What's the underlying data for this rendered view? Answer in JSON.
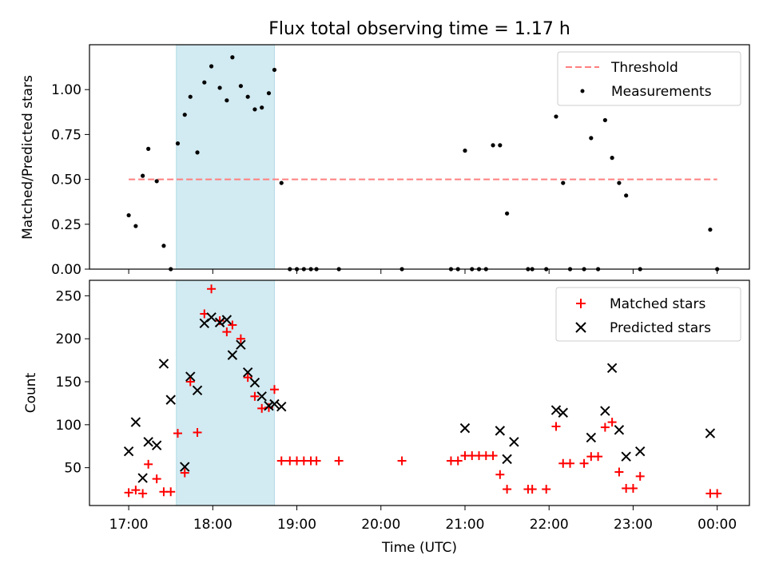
{
  "title": "Flux total observing time = 1.17 h",
  "colors": {
    "threshold": "#ff7f7f",
    "measurement": "#000000",
    "matched": "#ff0000",
    "predicted": "#000000",
    "span": "#add8e6"
  },
  "chart_data": [
    {
      "type": "scatter",
      "ylabel": "Matched/Predicted stars",
      "ylim": [
        0,
        1.25
      ],
      "yticks": [
        0.0,
        0.25,
        0.5,
        0.75,
        1.0
      ],
      "ytick_labels": [
        "0.00",
        "0.25",
        "0.50",
        "0.75",
        "1.00"
      ],
      "xlim": [
        "16:32",
        "00:23"
      ],
      "xticks": [
        "17:00",
        "18:00",
        "19:00",
        "20:00",
        "21:00",
        "22:00",
        "23:00",
        "00:00"
      ],
      "shaded_span": [
        "17:34",
        "18:44"
      ],
      "legend_position": "upper right",
      "legend": {
        "threshold": "Threshold",
        "measurements": "Measurements"
      },
      "series": [
        {
          "name": "Threshold",
          "kind": "dashed-line",
          "x": [
            "17:00",
            "00:00"
          ],
          "y": [
            0.5,
            0.5
          ]
        },
        {
          "name": "Measurements",
          "kind": "dots",
          "x": [
            "17:00",
            "17:05",
            "17:10",
            "17:14",
            "17:20",
            "17:25",
            "17:30",
            "17:35",
            "17:40",
            "17:44",
            "17:49",
            "17:54",
            "17:59",
            "18:05",
            "18:10",
            "18:14",
            "18:20",
            "18:25",
            "18:30",
            "18:35",
            "18:40",
            "18:44",
            "18:49",
            "18:55",
            "19:00",
            "19:05",
            "19:10",
            "19:14",
            "19:30",
            "20:15",
            "20:50",
            "20:55",
            "21:00",
            "21:05",
            "21:10",
            "21:15",
            "21:20",
            "21:25",
            "21:30",
            "21:45",
            "21:48",
            "21:58",
            "22:05",
            "22:10",
            "22:15",
            "22:25",
            "22:30",
            "22:35",
            "22:40",
            "22:45",
            "22:50",
            "22:55",
            "23:05",
            "23:55",
            "00:00"
          ],
          "y": [
            0.3,
            0.24,
            0.52,
            0.67,
            0.49,
            0.13,
            0.0,
            0.7,
            0.86,
            0.96,
            0.65,
            1.04,
            1.13,
            1.01,
            0.94,
            1.18,
            1.02,
            0.96,
            0.89,
            0.9,
            0.98,
            1.11,
            0.48,
            0.0,
            0.0,
            0.0,
            0.0,
            0.0,
            0.0,
            0.0,
            0.0,
            0.0,
            0.66,
            0.0,
            0.0,
            0.0,
            0.69,
            0.69,
            0.31,
            0.0,
            0.0,
            0.0,
            0.85,
            0.48,
            0.0,
            0.0,
            0.73,
            0.0,
            0.83,
            0.62,
            0.48,
            0.41,
            0.0,
            0.22,
            0.0
          ]
        }
      ]
    },
    {
      "type": "scatter",
      "ylabel": "Count",
      "xlabel": "Time (UTC)",
      "ylim": [
        6,
        268
      ],
      "yticks": [
        50,
        100,
        150,
        200,
        250
      ],
      "ytick_labels": [
        "50",
        "100",
        "150",
        "200",
        "250"
      ],
      "xlim": [
        "16:32",
        "00:23"
      ],
      "xticks": [
        "17:00",
        "18:00",
        "19:00",
        "20:00",
        "21:00",
        "22:00",
        "23:00",
        "00:00"
      ],
      "xtick_labels": [
        "17:00",
        "18:00",
        "19:00",
        "20:00",
        "21:00",
        "22:00",
        "23:00",
        "00:00"
      ],
      "shaded_span": [
        "17:34",
        "18:44"
      ],
      "legend_position": "upper right",
      "legend": {
        "matched": "Matched stars",
        "predicted": "Predicted stars"
      },
      "series": [
        {
          "name": "Matched stars",
          "marker": "plus",
          "x": [
            "17:00",
            "17:05",
            "17:10",
            "17:14",
            "17:20",
            "17:25",
            "17:30",
            "17:35",
            "17:40",
            "17:44",
            "17:49",
            "17:54",
            "17:59",
            "18:05",
            "18:10",
            "18:14",
            "18:20",
            "18:25",
            "18:30",
            "18:35",
            "18:40",
            "18:44",
            "18:49",
            "18:55",
            "19:00",
            "19:05",
            "19:10",
            "19:14",
            "19:30",
            "20:15",
            "20:50",
            "20:55",
            "21:00",
            "21:05",
            "21:10",
            "21:15",
            "21:20",
            "21:25",
            "21:30",
            "21:45",
            "21:48",
            "21:58",
            "22:05",
            "22:10",
            "22:15",
            "22:25",
            "22:30",
            "22:35",
            "22:40",
            "22:45",
            "22:50",
            "22:55",
            "23:00",
            "23:05",
            "23:55",
            "00:00"
          ],
          "y": [
            21,
            24,
            20,
            54,
            37,
            22,
            22,
            90,
            44,
            150,
            91,
            229,
            258,
            221,
            208,
            216,
            200,
            155,
            133,
            119,
            120,
            141,
            58,
            58,
            58,
            58,
            58,
            58,
            58,
            58,
            58,
            58,
            64,
            64,
            64,
            64,
            64,
            42,
            25,
            25,
            25,
            25,
            98,
            55,
            55,
            55,
            63,
            63,
            97,
            103,
            45,
            26,
            26,
            40,
            20,
            20
          ]
        },
        {
          "name": "Predicted stars",
          "marker": "x",
          "x": [
            "17:00",
            "17:05",
            "17:14",
            "17:20",
            "17:10",
            "17:25",
            "17:30",
            "17:40",
            "17:44",
            "17:49",
            "17:54",
            "17:59",
            "18:05",
            "18:10",
            "18:14",
            "18:20",
            "18:25",
            "18:30",
            "18:35",
            "18:40",
            "18:44",
            "18:49",
            "21:00",
            "21:25",
            "21:30",
            "21:35",
            "22:05",
            "22:10",
            "22:30",
            "22:40",
            "22:45",
            "22:50",
            "22:55",
            "23:05",
            "23:55"
          ],
          "y": [
            69,
            103,
            80,
            76,
            38,
            171,
            129,
            51,
            156,
            140,
            218,
            225,
            219,
            222,
            181,
            193,
            161,
            149,
            133,
            122,
            124,
            121,
            96,
            93,
            60,
            80,
            117,
            114,
            85,
            116,
            166,
            94,
            63,
            69,
            90
          ]
        }
      ]
    }
  ]
}
